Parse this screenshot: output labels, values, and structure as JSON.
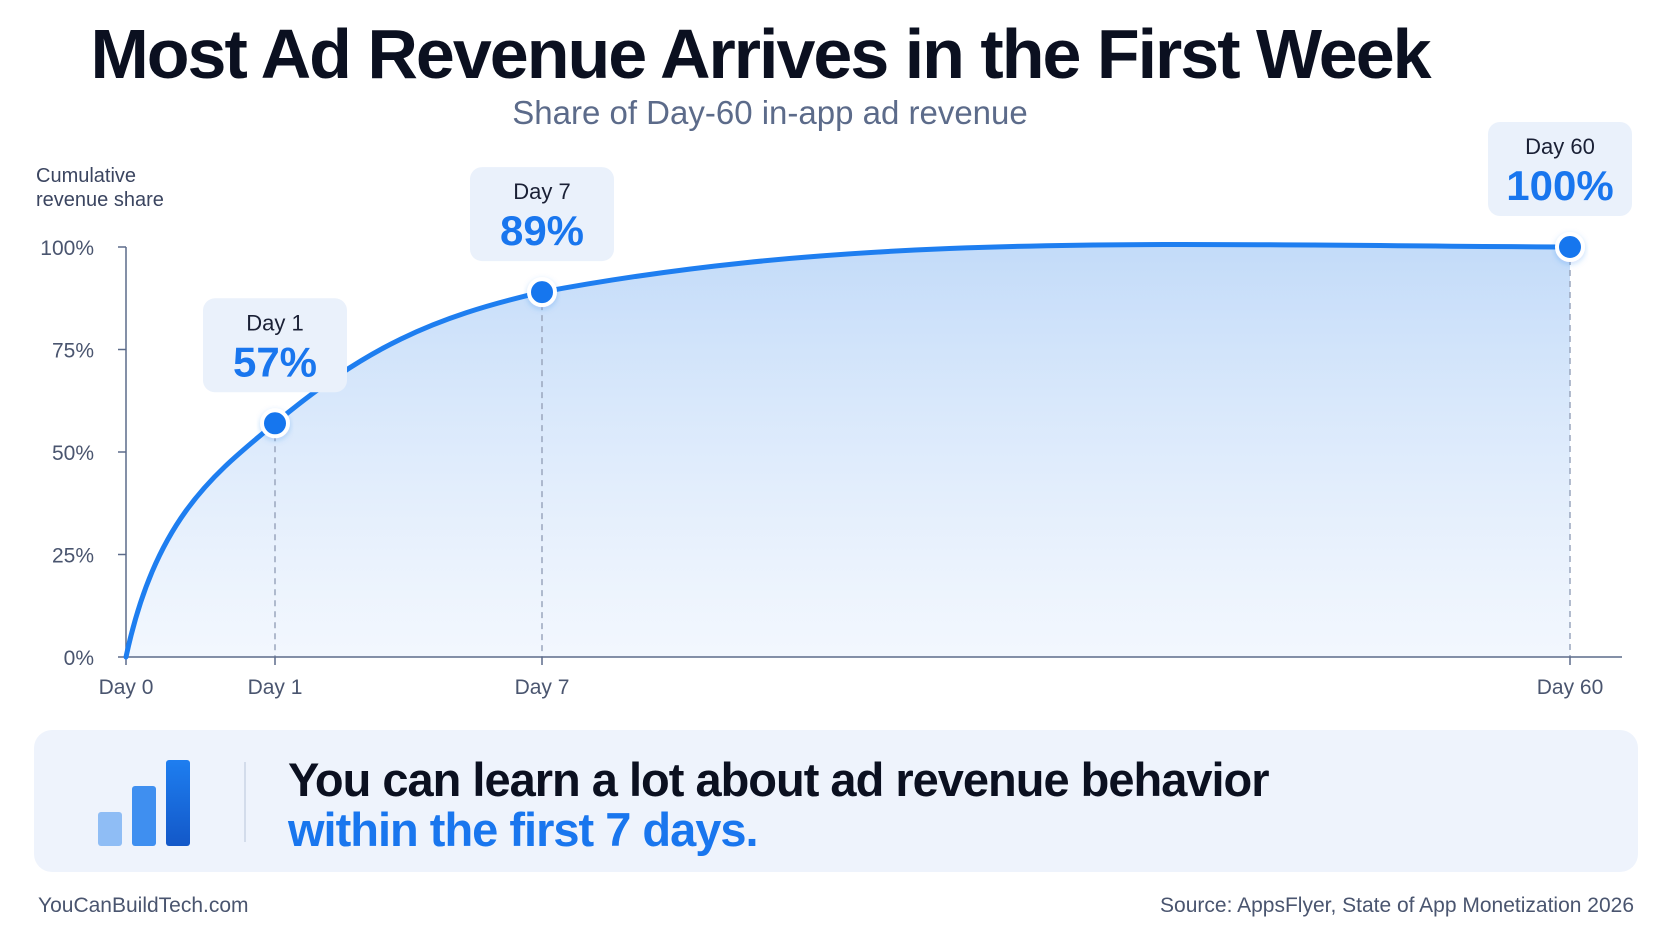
{
  "header": {
    "title": "Most Ad Revenue Arrives in the First Week",
    "subtitle": "Share of Day-60 in-app ad revenue"
  },
  "chart_data": {
    "type": "area",
    "ylabel_lines": [
      "Cumulative",
      "revenue share"
    ],
    "yticks": [
      "100%",
      "75%",
      "50%",
      "25%",
      "0%"
    ],
    "ytick_values": [
      100,
      75,
      50,
      25,
      0
    ],
    "ylim": [
      0,
      100
    ],
    "xticks": [
      "Day 0",
      "Day 1",
      "Day 7",
      "Day 60"
    ],
    "xtick_values": [
      0,
      1,
      7,
      60
    ],
    "series": [
      {
        "x": [
          0,
          1,
          7,
          60
        ],
        "y": [
          0,
          57,
          89,
          100
        ]
      }
    ],
    "annotations": [
      {
        "x": 1,
        "y": 57,
        "label": "Day 1",
        "value": "57%"
      },
      {
        "x": 7,
        "y": 89,
        "label": "Day 7",
        "value": "89%"
      },
      {
        "x": 60,
        "y": 100,
        "label": "Day 60",
        "value": "100%"
      }
    ],
    "grid": false,
    "colors": {
      "line": "#1e7ef0",
      "fill": "#cfe2fb",
      "marker": "#1976ee"
    }
  },
  "callout": {
    "line1": "You can learn a lot about ad revenue behavior",
    "line2": "within the first 7 days.",
    "icon": "bar-chart-icon"
  },
  "footer": {
    "site": "YouCanBuildTech.com",
    "source": "Source: AppsFlyer, State of App Monetization 2026"
  }
}
